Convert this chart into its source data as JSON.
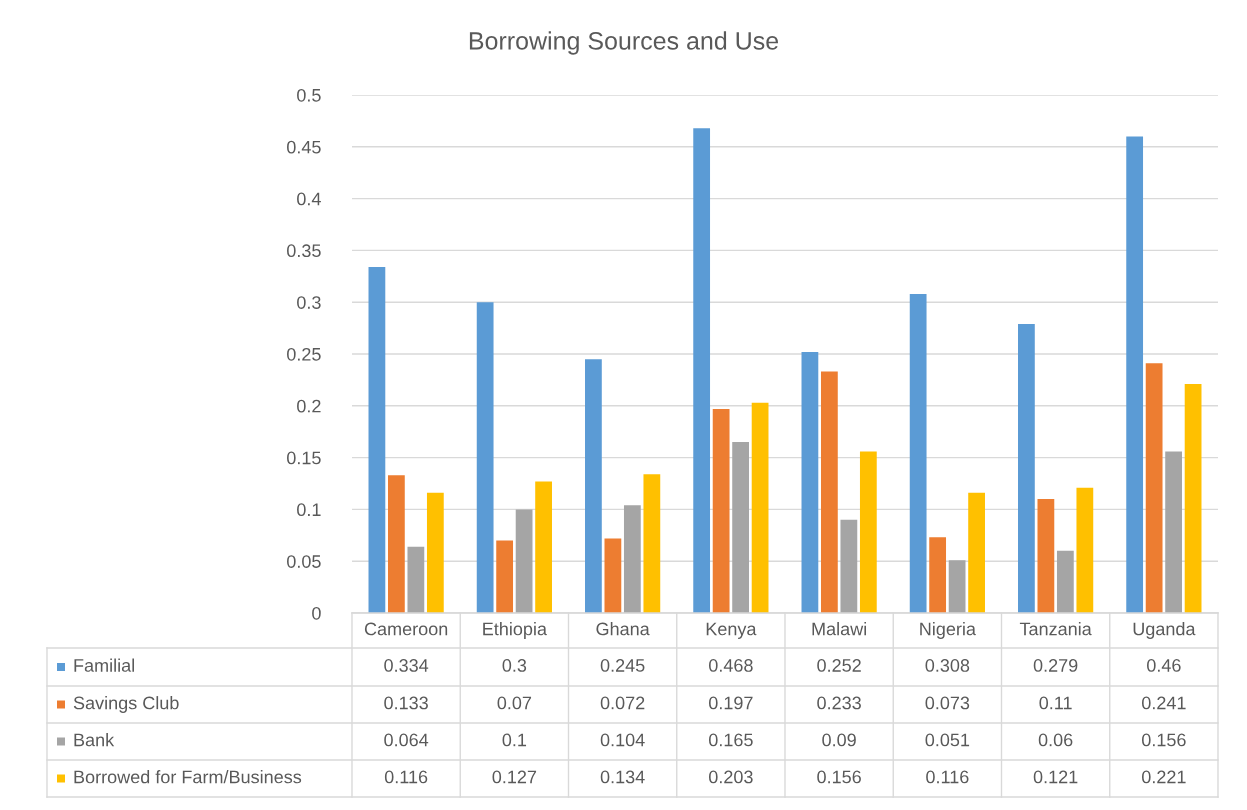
{
  "chart_data": {
    "type": "bar",
    "title": "Borrowing Sources and Use",
    "categories": [
      "Cameroon",
      "Ethiopia",
      "Ghana",
      "Kenya",
      "Malawi",
      "Nigeria",
      "Tanzania",
      "Uganda"
    ],
    "series": [
      {
        "name": "Familial",
        "color": "#5b9bd5",
        "values": [
          0.334,
          0.3,
          0.245,
          0.468,
          0.252,
          0.308,
          0.279,
          0.46
        ]
      },
      {
        "name": "Savings Club",
        "color": "#ed7d31",
        "values": [
          0.133,
          0.07,
          0.072,
          0.197,
          0.233,
          0.073,
          0.11,
          0.241
        ]
      },
      {
        "name": "Bank",
        "color": "#a5a5a5",
        "values": [
          0.064,
          0.1,
          0.104,
          0.165,
          0.09,
          0.051,
          0.06,
          0.156
        ]
      },
      {
        "name": "Borrowed for Farm/Business",
        "color": "#ffc000",
        "values": [
          0.116,
          0.127,
          0.134,
          0.203,
          0.156,
          0.116,
          0.121,
          0.221
        ]
      }
    ],
    "ylim": [
      0,
      0.5
    ],
    "yticks": [
      0,
      0.05,
      0.1,
      0.15,
      0.2,
      0.25,
      0.3,
      0.35,
      0.4,
      0.45,
      0.5
    ],
    "grid": "y",
    "legend": "bottom",
    "data_labels": true
  }
}
